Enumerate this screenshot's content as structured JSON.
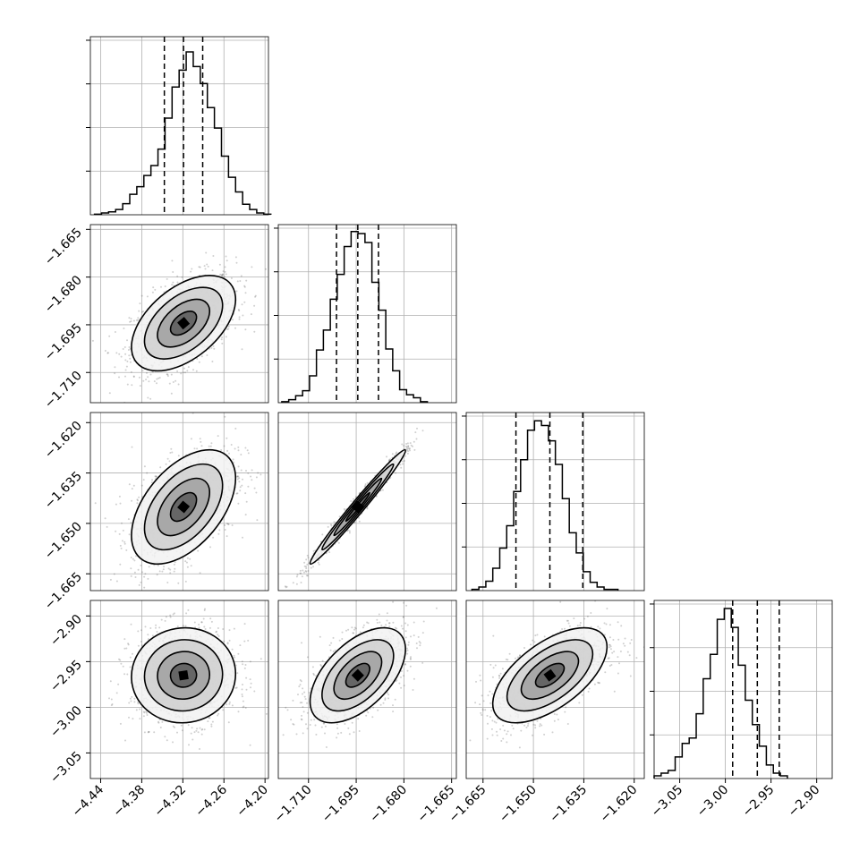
{
  "chart_data": {
    "type": "corner",
    "colors": {
      "ink": "#000000",
      "grid": "#b0b0b0",
      "background": "#ffffff"
    },
    "grid": true,
    "title": "",
    "parameters": [
      {
        "xlim": [
          -4.455,
          -4.195
        ],
        "ticks": [
          "-4.44",
          "-4.38",
          "-4.32",
          "-4.26",
          "-4.20"
        ],
        "tick_values": [
          -4.44,
          -4.38,
          -4.32,
          -4.26,
          -4.2
        ],
        "quantiles": [
          -4.347,
          -4.319,
          -4.291
        ]
      },
      {
        "xlim": [
          -1.7195,
          -1.6635
        ],
        "ticks": [
          "-1.665",
          "-1.680",
          "-1.695",
          "-1.710"
        ],
        "tick_values": [
          -1.665,
          -1.68,
          -1.695,
          -1.71
        ],
        "x_ticks": [
          "-1.710",
          "-1.695",
          "-1.680",
          "-1.665"
        ],
        "x_tick_values": [
          -1.71,
          -1.695,
          -1.68,
          -1.665
        ],
        "quantiles": [
          -1.7012,
          -1.6945,
          -1.688
        ]
      },
      {
        "xlim": [
          -1.67,
          -1.617
        ],
        "ticks": [
          "-1.620",
          "-1.635",
          "-1.650",
          "-1.665"
        ],
        "tick_values": [
          -1.62,
          -1.635,
          -1.65,
          -1.665
        ],
        "x_ticks": [
          "-1.665",
          "-1.650",
          "-1.635",
          "-1.620"
        ],
        "x_tick_values": [
          -1.665,
          -1.65,
          -1.635,
          -1.62
        ],
        "quantiles": [
          -1.6552,
          -1.6451,
          -1.6353
        ]
      },
      {
        "xlim": [
          -3.078,
          -2.883
        ],
        "ticks": [
          "-2.90",
          "-2.95",
          "-3.00",
          "-3.05"
        ],
        "tick_values": [
          -2.9,
          -2.95,
          -3.0,
          -3.05
        ],
        "x_ticks": [
          "-3.05",
          "-3.00",
          "-2.95",
          "-2.90"
        ],
        "x_tick_values": [
          -3.05,
          -3.0,
          -2.95,
          -2.9
        ],
        "quantiles": [
          -2.992,
          -2.965,
          -2.941
        ]
      }
    ],
    "histograms": [
      {
        "param": 0,
        "bin_edges_start": -4.449,
        "bin_width": 0.0103,
        "counts": [
          1,
          3,
          5,
          9,
          19,
          35,
          48,
          67,
          84,
          112,
          165,
          218,
          247,
          278,
          253,
          224,
          183,
          148,
          100,
          64,
          39,
          18,
          9,
          3,
          1
        ],
        "ymax": 304
      },
      {
        "param": 1,
        "bin_edges_start": -1.7184,
        "bin_width": 0.00218,
        "counts": [
          1,
          3,
          7,
          12,
          27,
          53,
          73,
          104,
          129,
          157,
          172,
          170,
          161,
          121,
          93,
          54,
          32,
          13,
          8,
          5,
          1
        ],
        "ymax": 179
      },
      {
        "param": 2,
        "bin_edges_start": -1.6683,
        "bin_width": 0.00207,
        "counts": [
          1,
          3,
          8,
          19,
          36,
          55,
          84,
          111,
          136,
          144,
          140,
          127,
          107,
          78,
          49,
          32,
          16,
          7,
          3,
          1,
          1
        ],
        "ymax": 151
      },
      {
        "param": 3,
        "bin_edges_start": -3.078,
        "bin_width": 0.00768,
        "counts": [
          1,
          2,
          3,
          8,
          13,
          15,
          24,
          37,
          46,
          59,
          63,
          56,
          42,
          29,
          20,
          12,
          5,
          2,
          1
        ],
        "ymax": 66
      }
    ],
    "pairs": [
      {
        "x": 0,
        "y": 1,
        "mean": [
          -4.319,
          -1.6945
        ],
        "sd": [
          0.038,
          0.0075
        ],
        "rho": 0.5,
        "contours_sigma": [
          0.5,
          1.0,
          1.5,
          2.0
        ]
      },
      {
        "x": 0,
        "y": 2,
        "mean": [
          -4.319,
          -1.6451
        ],
        "sd": [
          0.038,
          0.0085
        ],
        "rho": 0.5,
        "contours_sigma": [
          0.5,
          1.0,
          1.5,
          2.0
        ]
      },
      {
        "x": 0,
        "y": 3,
        "mean": [
          -4.319,
          -2.965
        ],
        "sd": [
          0.038,
          0.026
        ],
        "rho": 0.03,
        "contours_sigma": [
          0.5,
          1.0,
          1.5,
          2.0
        ]
      },
      {
        "x": 1,
        "y": 2,
        "mean": [
          -1.6945,
          -1.6451
        ],
        "sd": [
          0.0075,
          0.0085
        ],
        "rho": 0.985,
        "contours_sigma": [
          0.5,
          1.0,
          1.5,
          2.0
        ]
      },
      {
        "x": 1,
        "y": 3,
        "mean": [
          -1.6945,
          -2.965
        ],
        "sd": [
          0.0075,
          0.026
        ],
        "rho": 0.55,
        "contours_sigma": [
          0.5,
          1.0,
          1.5,
          2.0
        ]
      },
      {
        "x": 2,
        "y": 3,
        "mean": [
          -1.6451,
          -2.965
        ],
        "sd": [
          0.0085,
          0.026
        ],
        "rho": 0.6,
        "contours_sigma": [
          0.5,
          1.0,
          1.5,
          2.0
        ]
      }
    ]
  }
}
